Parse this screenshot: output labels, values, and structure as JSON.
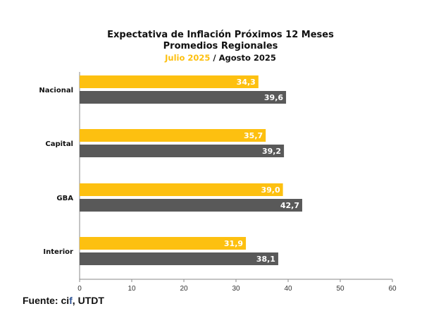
{
  "chart_data": {
    "type": "bar",
    "orientation": "horizontal",
    "title": "Expectativa de Inflación Próximos 12 Meses",
    "subtitle": "Promedios Regionales",
    "categories": [
      "Nacional",
      "Capital",
      "GBA",
      "Interior"
    ],
    "series": [
      {
        "name": "Julio 2025",
        "color": "#FDC010",
        "values": [
          34.3,
          35.7,
          39.0,
          31.9
        ],
        "labels": [
          "34,3",
          "35,7",
          "39,0",
          "31,9"
        ]
      },
      {
        "name": "Agosto 2025",
        "color": "#595959",
        "values": [
          39.6,
          39.2,
          42.7,
          38.1
        ],
        "labels": [
          "39,6",
          "39,2",
          "42,7",
          "38,1"
        ]
      }
    ],
    "legend_separator": " / ",
    "xlim": [
      0,
      60
    ],
    "xticks": [
      0,
      10,
      20,
      30,
      40,
      50,
      60
    ],
    "grid": false
  },
  "source": {
    "prefix": "Fuente: ci",
    "highlight": "f",
    "suffix": ", UTDT",
    "highlight_color": "#2F5597"
  }
}
